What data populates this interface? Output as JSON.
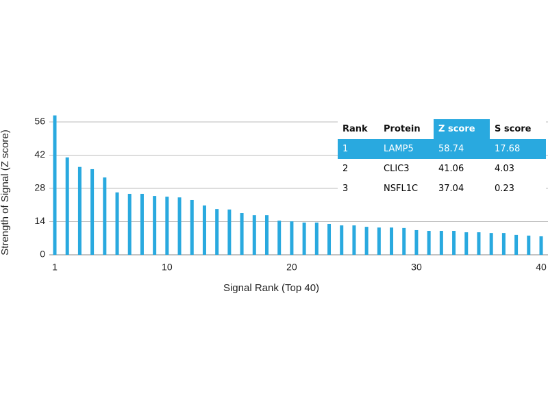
{
  "chart_data": {
    "type": "bar",
    "x_label": "Signal Rank (Top 40)",
    "y_label": "Strength of Signal (Z score)",
    "x": [
      1,
      2,
      3,
      4,
      5,
      6,
      7,
      8,
      9,
      10,
      11,
      12,
      13,
      14,
      15,
      16,
      17,
      18,
      19,
      20,
      21,
      22,
      23,
      24,
      25,
      26,
      27,
      28,
      29,
      30,
      31,
      32,
      33,
      34,
      35,
      36,
      37,
      38,
      39,
      40
    ],
    "values": [
      58.74,
      41.06,
      37.04,
      36.1,
      32.6,
      26.3,
      25.7,
      25.7,
      24.8,
      24.5,
      24.2,
      23.1,
      20.8,
      19.3,
      19.1,
      17.6,
      16.7,
      16.7,
      14.4,
      14.1,
      13.6,
      13.6,
      13.0,
      12.4,
      12.4,
      11.8,
      11.5,
      11.5,
      11.3,
      10.4,
      10.1,
      10.1,
      10.1,
      9.5,
      9.5,
      9.2,
      9.2,
      8.4,
      8.1,
      7.8
    ],
    "color": "#29a9df",
    "xlim": [
      1,
      40
    ],
    "xticks": [
      1,
      10,
      20,
      30,
      40
    ],
    "ylim": [
      0,
      56
    ],
    "yticks": [
      0,
      14,
      28,
      42,
      56
    ],
    "grid": true
  },
  "table": {
    "columns": [
      "Rank",
      "Protein",
      "Z score",
      "S score"
    ],
    "rows": [
      [
        "1",
        "LAMP5",
        "58.74",
        "17.68"
      ],
      [
        "2",
        "CLIC3",
        "41.06",
        "4.03"
      ],
      [
        "3",
        "NSFL1C",
        "37.04",
        "0.23"
      ]
    ],
    "highlight_color": "#29a9df"
  }
}
